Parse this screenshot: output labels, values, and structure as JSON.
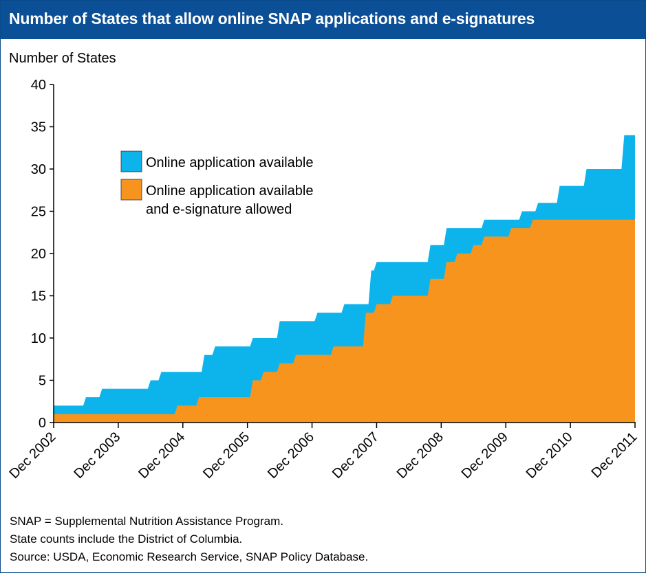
{
  "header": {
    "title": "Number of States that allow online SNAP applications and e-signatures"
  },
  "notes": [
    "SNAP = Supplemental Nutrition Assistance Program.",
    "State counts include the District of Columbia.",
    "Source: USDA, Economic Research Service, SNAP Policy Database."
  ],
  "colors": {
    "online": "#0db4ec",
    "esig": "#f7941d",
    "header_bg": "#0b4f96",
    "axis": "#000000"
  },
  "chart_data": {
    "type": "area",
    "ylabel": "Number of States",
    "xlabel": "",
    "ylim": [
      0,
      40
    ],
    "yticks": [
      0,
      5,
      10,
      15,
      20,
      25,
      30,
      35,
      40
    ],
    "xlim": [
      "Dec 2002",
      "Dec 2011"
    ],
    "xticks": [
      "Dec 2002",
      "Dec 2003",
      "Dec 2004",
      "Dec 2005",
      "Dec 2006",
      "Dec 2007",
      "Dec 2008",
      "Dec 2009",
      "Dec 2010",
      "Dec 2011"
    ],
    "grid": false,
    "legend_position": "upper-left inside plot",
    "legend": [
      {
        "label": "Online application available",
        "color_key": "online"
      },
      {
        "label": "Online application available\nand e-signature allowed",
        "color_key": "esig"
      }
    ],
    "series": [
      {
        "name": "Online application available",
        "color_key": "online",
        "step_points": [
          [
            "2002-12",
            2
          ],
          [
            "2003-06",
            3
          ],
          [
            "2003-09",
            4
          ],
          [
            "2004-06",
            5
          ],
          [
            "2004-08",
            6
          ],
          [
            "2005-04",
            8
          ],
          [
            "2005-06",
            9
          ],
          [
            "2006-01",
            10
          ],
          [
            "2006-06",
            12
          ],
          [
            "2007-01",
            13
          ],
          [
            "2007-06",
            14
          ],
          [
            "2007-11",
            18
          ],
          [
            "2007-12",
            19
          ],
          [
            "2008-10",
            21
          ],
          [
            "2009-01",
            23
          ],
          [
            "2009-06",
            23
          ],
          [
            "2009-08",
            24
          ],
          [
            "2010-03",
            25
          ],
          [
            "2010-06",
            26
          ],
          [
            "2010-10",
            28
          ],
          [
            "2011-03",
            30
          ],
          [
            "2011-10",
            34
          ],
          [
            "2011-12",
            34
          ]
        ]
      },
      {
        "name": "Online application available\nand e-signature allowed",
        "color_key": "esig",
        "step_points": [
          [
            "2002-12",
            1
          ],
          [
            "2004-11",
            2
          ],
          [
            "2005-03",
            3
          ],
          [
            "2006-01",
            5
          ],
          [
            "2006-03",
            6
          ],
          [
            "2006-06",
            7
          ],
          [
            "2006-09",
            8
          ],
          [
            "2007-04",
            9
          ],
          [
            "2007-10",
            13
          ],
          [
            "2007-12",
            14
          ],
          [
            "2008-03",
            15
          ],
          [
            "2008-10",
            17
          ],
          [
            "2009-01",
            19
          ],
          [
            "2009-03",
            20
          ],
          [
            "2009-06",
            21
          ],
          [
            "2009-08",
            22
          ],
          [
            "2010-01",
            23
          ],
          [
            "2010-05",
            24
          ],
          [
            "2011-12",
            24
          ]
        ]
      }
    ]
  }
}
